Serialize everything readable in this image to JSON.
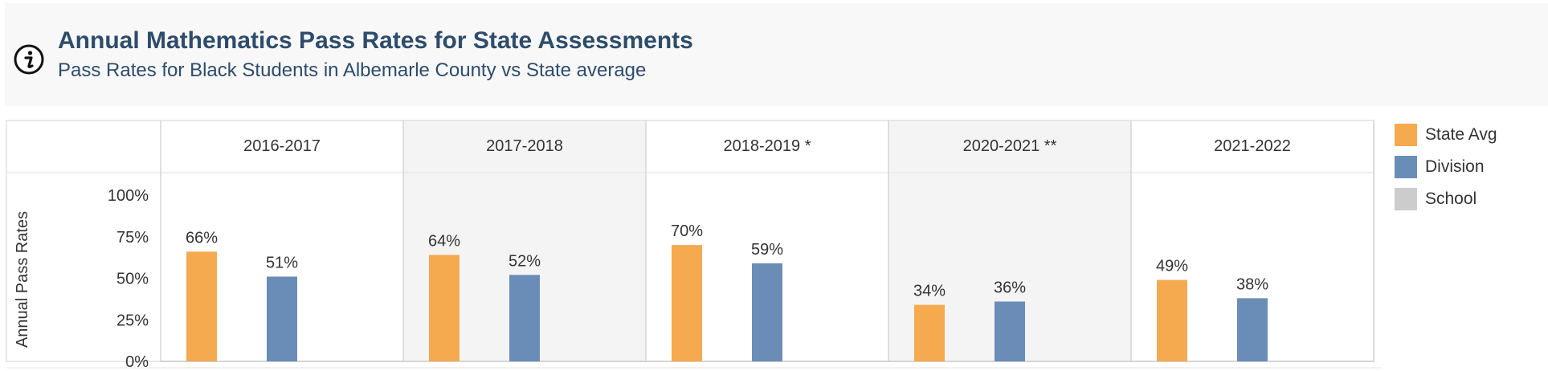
{
  "header": {
    "title": "Annual Mathematics Pass Rates for State Assessments",
    "subtitle": "Pass Rates for Black Students in Albemarle County vs State average"
  },
  "legend": {
    "items": [
      {
        "label": "State Avg",
        "color": "#f5aa4f"
      },
      {
        "label": "Division",
        "color": "#6a8db8"
      },
      {
        "label": "School",
        "color": "#cccccc"
      }
    ]
  },
  "chart_data": {
    "type": "bar",
    "title": "Annual Mathematics Pass Rates for State Assessments",
    "subtitle": "Pass Rates for Black Students in Albemarle County vs State average",
    "ylabel": "Annual Pass Rates",
    "ylim": [
      0,
      100
    ],
    "yticks": [
      "100%",
      "75%",
      "50%",
      "25%",
      "0%"
    ],
    "yticks_values": [
      100,
      75,
      50,
      25,
      0
    ],
    "categories": [
      "2016-2017",
      "2017-2018",
      "2018-2019 *",
      "2020-2021 **",
      "2021-2022"
    ],
    "series": [
      {
        "name": "State Avg",
        "color": "#f5aa4f",
        "values": [
          66,
          64,
          70,
          34,
          49
        ],
        "labels": [
          "66%",
          "64%",
          "70%",
          "34%",
          "49%"
        ]
      },
      {
        "name": "Division",
        "color": "#6a8db8",
        "values": [
          51,
          52,
          59,
          36,
          38
        ],
        "labels": [
          "51%",
          "52%",
          "59%",
          "36%",
          "38%"
        ]
      }
    ],
    "legend_position": "right"
  }
}
